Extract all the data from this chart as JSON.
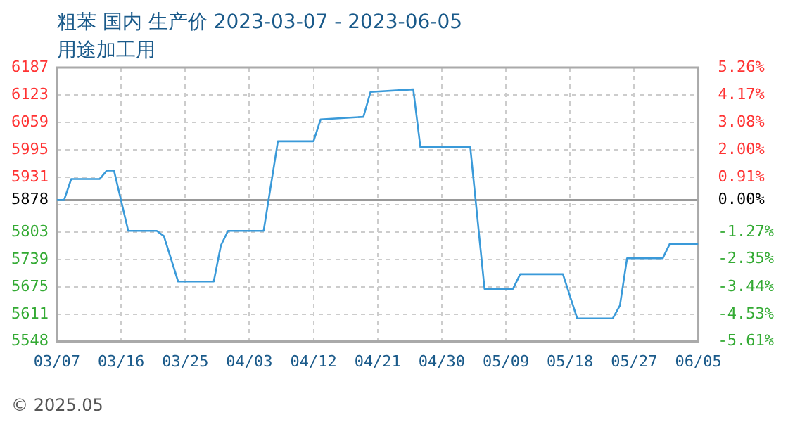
{
  "chart_data": {
    "type": "line",
    "title": "粗苯 国内 生产价 2023-03-07 - 2023-06-05",
    "subtitle": "用途加工用",
    "annotations": [
      "© 2025.05"
    ],
    "x": [
      "2023-03-07",
      "2023-03-08",
      "2023-03-09",
      "2023-03-13",
      "2023-03-14",
      "2023-03-15",
      "2023-03-17",
      "2023-03-21",
      "2023-03-22",
      "2023-03-24",
      "2023-03-29",
      "2023-03-30",
      "2023-03-31",
      "2023-04-05",
      "2023-04-07",
      "2023-04-12",
      "2023-04-13",
      "2023-04-19",
      "2023-04-20",
      "2023-04-26",
      "2023-04-27",
      "2023-05-04",
      "2023-05-06",
      "2023-05-10",
      "2023-05-11",
      "2023-05-17",
      "2023-05-19",
      "2023-05-24",
      "2023-05-25",
      "2023-05-26",
      "2023-05-31",
      "2023-06-01",
      "2023-06-05"
    ],
    "series": [
      {
        "color": "#3a9ad9",
        "values": [
          5878,
          5878,
          5927,
          5927,
          5947,
          5947,
          5806,
          5806,
          5794,
          5688,
          5688,
          5772,
          5806,
          5806,
          6015,
          6015,
          6066,
          6072,
          6130,
          6136,
          6001,
          6001,
          5671,
          5671,
          5705,
          5705,
          5602,
          5602,
          5632,
          5742,
          5742,
          5776,
          5776
        ]
      }
    ],
    "xlim": [
      "2023-03-07",
      "2023-06-05"
    ],
    "xticks": [
      {
        "value": "2023-03-07",
        "label": "03/07"
      },
      {
        "value": "2023-03-16",
        "label": "03/16"
      },
      {
        "value": "2023-03-25",
        "label": "03/25"
      },
      {
        "value": "2023-04-03",
        "label": "04/03"
      },
      {
        "value": "2023-04-12",
        "label": "04/12"
      },
      {
        "value": "2023-04-21",
        "label": "04/21"
      },
      {
        "value": "2023-04-30",
        "label": "04/30"
      },
      {
        "value": "2023-05-09",
        "label": "05/09"
      },
      {
        "value": "2023-05-18",
        "label": "05/18"
      },
      {
        "value": "2023-05-27",
        "label": "05/27"
      },
      {
        "value": "2023-06-05",
        "label": "06/05"
      }
    ],
    "ylim": [
      5548,
      6187
    ],
    "yticks": [
      5548,
      5611,
      5675,
      5739,
      5803,
      {
        "value": 5867,
        "label": null
      },
      5878,
      5931,
      5995,
      6059,
      6123,
      6187
    ],
    "y2lim": [
      -5.61,
      5.26
    ],
    "y2ticks": [
      {
        "value": -5.61,
        "label": "-5.61%"
      },
      {
        "value": -4.53,
        "label": "-4.53%"
      },
      {
        "value": -3.44,
        "label": "-3.44%"
      },
      {
        "value": -2.35,
        "label": "-2.35%"
      },
      {
        "value": -1.27,
        "label": "-1.27%"
      },
      {
        "value": 0,
        "label": "0.00%"
      },
      {
        "value": 0.91,
        "label": "0.91%"
      },
      {
        "value": 2.0,
        "label": "2.00%"
      },
      {
        "value": 3.08,
        "label": "3.08%"
      },
      {
        "value": 4.17,
        "label": "4.17%"
      },
      {
        "value": 5.26,
        "label": "5.26%"
      }
    ],
    "ref_lines": [
      {
        "axis": "y",
        "value": 5878,
        "color": "#999999",
        "line_style": "solid"
      }
    ],
    "grid": true,
    "legend": false,
    "marker": "none",
    "line_style": "solid"
  }
}
